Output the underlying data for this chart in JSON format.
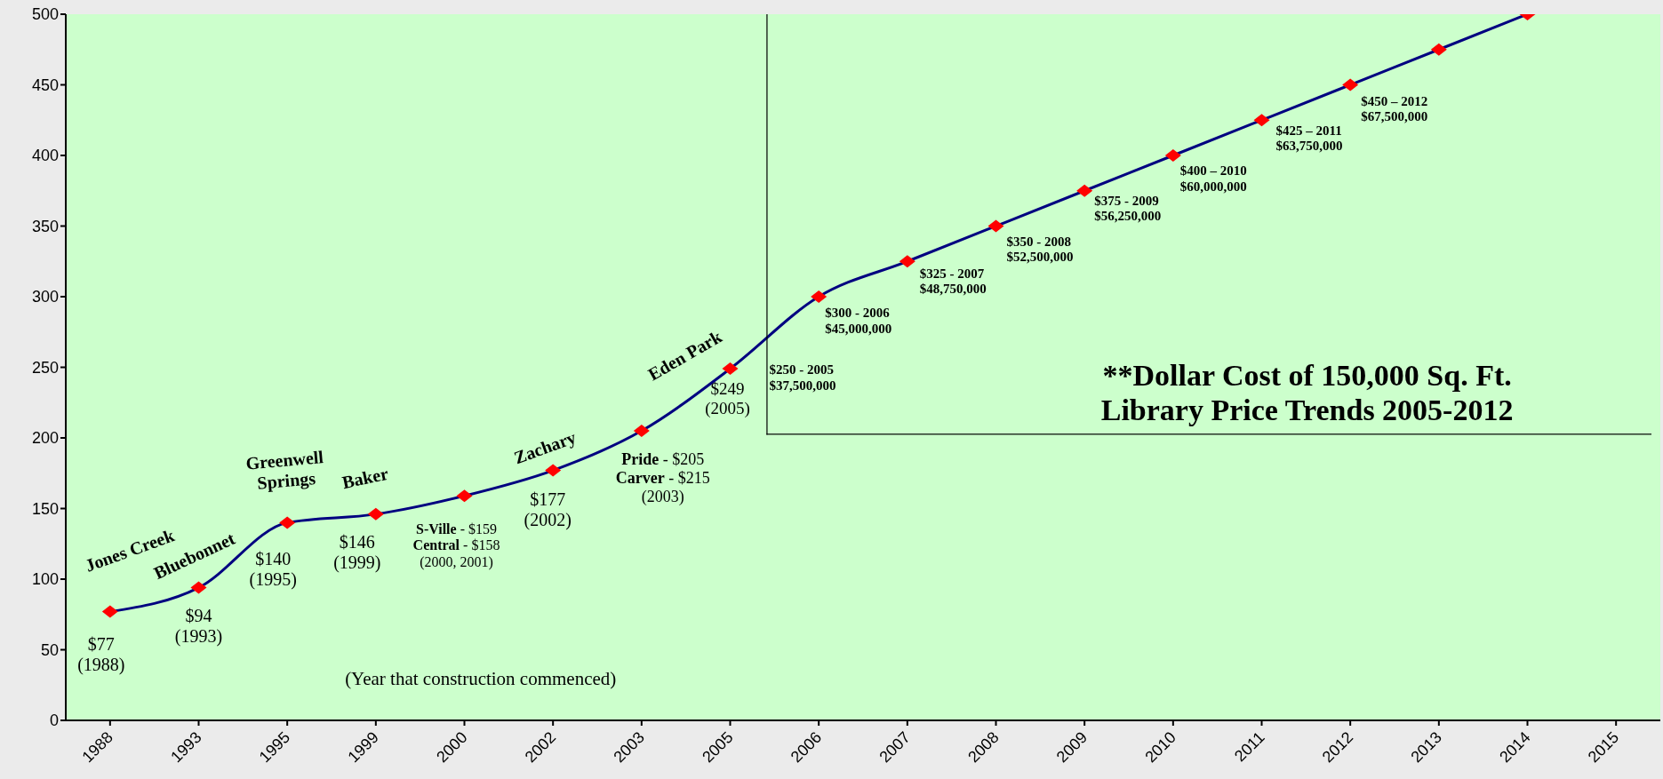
{
  "chart_data": {
    "type": "line",
    "categories": [
      "1988",
      "1993",
      "1995",
      "1999",
      "2000",
      "2002",
      "2003",
      "2005",
      "2006",
      "2007",
      "2008",
      "2009",
      "2010",
      "2011",
      "2012",
      "2013",
      "2014",
      "2015"
    ],
    "series": [
      {
        "color": "#000080",
        "colors": [
          "#ff0000",
          "#ff0000",
          "#ff0000",
          "#ff0000",
          "#ff0000",
          "#ff0000",
          "#ff0000",
          "#ff0000",
          "#ff0000",
          "#ff0000",
          "#ff0000",
          "#ff0000",
          "#ff0000",
          "#ff0000",
          "#ff0000",
          "#ff0000",
          "#ff0000",
          "#ff0000"
        ],
        "values": [
          77,
          94,
          140,
          146,
          159,
          177,
          205,
          249,
          300,
          325,
          350,
          375,
          400,
          425,
          450,
          475,
          500,
          null
        ]
      }
    ],
    "marker": "diamond",
    "ylim": [
      0,
      500
    ],
    "yticks": [
      0,
      50,
      100,
      150,
      200,
      250,
      300,
      350,
      400,
      450,
      500
    ],
    "grid": false,
    "legend": false,
    "annotations": [
      {
        "text": "Jones Creek",
        "x": "1988",
        "y": 77
      },
      {
        "text": "$77\n(1988)",
        "x": "1988",
        "y": 77
      },
      {
        "text": "Bluebonnet",
        "x": "1993",
        "y": 94
      },
      {
        "text": "$94\n(1993)",
        "x": "1993",
        "y": 94
      },
      {
        "text": "Greenwell\nSprings",
        "x": "1995",
        "y": 140
      },
      {
        "text": "$140\n(1995)",
        "x": "1995",
        "y": 140
      },
      {
        "text": "Baker",
        "x": "1999",
        "y": 146
      },
      {
        "text": "$146\n(1999)",
        "x": "1999",
        "y": 146
      },
      {
        "text": "S-Ville - $159\nCentral - $158\n(2000, 2001)",
        "x": "2000",
        "y": 159
      },
      {
        "text": "Zachary",
        "x": "2002",
        "y": 177
      },
      {
        "text": "$177\n(2002)",
        "x": "2002",
        "y": 177
      },
      {
        "text": "Pride - $205\nCarver - $215\n(2003)",
        "x": "2003",
        "y": 205
      },
      {
        "text": "Eden Park",
        "x": "2005",
        "y": 249
      },
      {
        "text": "$249\n(2005)",
        "x": "2005",
        "y": 249
      },
      {
        "text": "$250 - 2005\n$37,500,000",
        "x": "2005",
        "y": 249
      },
      {
        "text": "$300 - 2006\n$45,000,000",
        "x": "2006",
        "y": 300
      },
      {
        "text": "$325 - 2007\n$48,750,000",
        "x": "2007",
        "y": 325
      },
      {
        "text": "$350 - 2008\n$52,500,000",
        "x": "2008",
        "y": 350
      },
      {
        "text": "$375 - 2009\n$56,250,000",
        "x": "2009",
        "y": 375
      },
      {
        "text": "$400 – 2010\n$60,000,000",
        "x": "2010",
        "y": 400
      },
      {
        "text": "$425 – 2011\n$63,750,000",
        "x": "2011",
        "y": 425
      },
      {
        "text": "$450 – 2012\n$67,500,000",
        "x": "2012",
        "y": 450
      },
      "(Year that construction commenced)",
      "**Dollar Cost of 150,000 Sq. Ft.\nLibrary Price Trends 2005-2012"
    ]
  }
}
